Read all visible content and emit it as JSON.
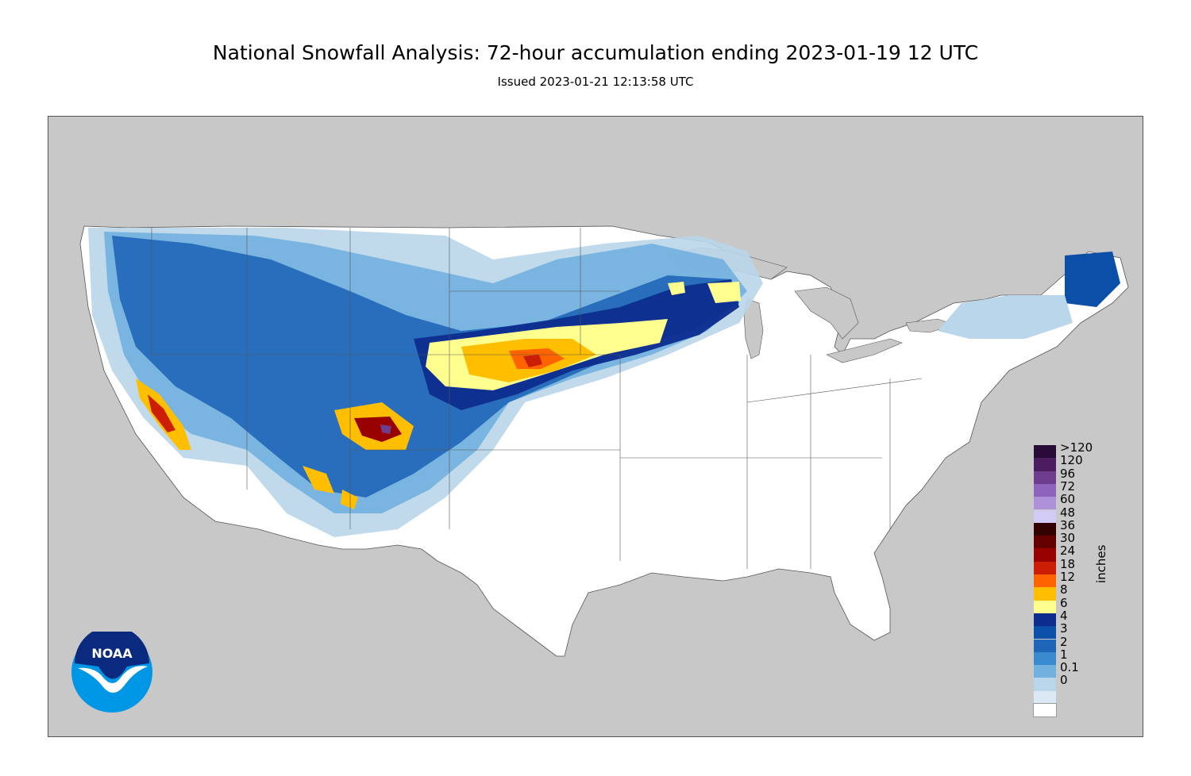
{
  "header": {
    "title": "National Snowfall Analysis: 72-hour accumulation ending 2023-01-19 12 UTC",
    "subtitle": "Issued 2023-01-21 12:13:58 UTC"
  },
  "legend": {
    "unit_label": "inches",
    "levels": [
      {
        "label": ">120",
        "color": "#2a0a36"
      },
      {
        "label": "120",
        "color": "#4b1c60"
      },
      {
        "label": "96",
        "color": "#6e3d8e"
      },
      {
        "label": "72",
        "color": "#8e63bb"
      },
      {
        "label": "60",
        "color": "#ae91d8"
      },
      {
        "label": "48",
        "color": "#d1cbf5"
      },
      {
        "label": "36",
        "color": "#330000"
      },
      {
        "label": "30",
        "color": "#650000"
      },
      {
        "label": "24",
        "color": "#990000"
      },
      {
        "label": "18",
        "color": "#cc1d05"
      },
      {
        "label": "12",
        "color": "#ff6400"
      },
      {
        "label": "8",
        "color": "#ffbf00"
      },
      {
        "label": "6",
        "color": "#ffff90"
      },
      {
        "label": "4",
        "color": "#0c2c8e"
      },
      {
        "label": "3",
        "color": "#0c4fa8"
      },
      {
        "label": "2",
        "color": "#2066b8"
      },
      {
        "label": "1",
        "color": "#3a8ad0"
      },
      {
        "label": "0.1",
        "color": "#72b0e0"
      },
      {
        "label": "0",
        "color": "#b9d6ea"
      },
      {
        "label": "",
        "color": "#dbe9f4"
      },
      {
        "label": "",
        "color": "#ffffff"
      }
    ]
  },
  "map": {
    "colors": {
      "background": "#c8c8c8",
      "land_us": "#ffffff",
      "water": "#c8c8c8",
      "border": "#555555"
    }
  },
  "logo": {
    "text": "NOAA",
    "colors": {
      "outer": "#0096e6",
      "inner": "#0a2a80",
      "bird": "#ffffff"
    }
  }
}
